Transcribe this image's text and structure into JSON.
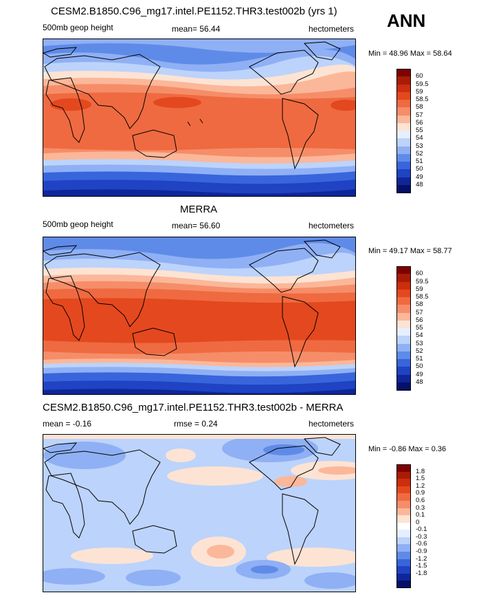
{
  "header": {
    "season": "ANN"
  },
  "panels": [
    {
      "id": "model",
      "title": "CESM2.B1850.C96_mg17.intel.PE1152.THR3.test002b (yrs 1)",
      "variable": "500mb geop height",
      "stat_text": "mean=  56.44",
      "units": "hectometers",
      "minmax": "Min =  48.96 Max =  58.64",
      "levels": [
        "60",
        "59.5",
        "59",
        "58.5",
        "58",
        "57",
        "56",
        "55",
        "54",
        "53",
        "52",
        "51",
        "50",
        "49",
        "48"
      ]
    },
    {
      "id": "obs",
      "title": "MERRA",
      "variable": "500mb geop height",
      "stat_text": "mean=  56.60",
      "units": "hectometers",
      "minmax": "Min =  49.17 Max =  58.77",
      "levels": [
        "60",
        "59.5",
        "59",
        "58.5",
        "58",
        "57",
        "56",
        "55",
        "54",
        "53",
        "52",
        "51",
        "50",
        "49",
        "48"
      ]
    },
    {
      "id": "diff",
      "title": "CESM2.B1850.C96_mg17.intel.PE1152.THR3.test002b - MERRA",
      "variable": "mean =  -0.16",
      "stat_text": "rmse =   0.24",
      "units": "hectometers",
      "minmax": "Min =  -0.86 Max =   0.36",
      "levels": [
        "1.8",
        "1.5",
        "1.2",
        "0.9",
        "0.6",
        "0.3",
        "0.1",
        "0",
        "-0.1",
        "-0.3",
        "-0.6",
        "-0.9",
        "-1.2",
        "-1.5",
        "-1.8"
      ]
    }
  ],
  "colors": {
    "height_scale": [
      "#7f0000",
      "#a81c05",
      "#cc2e0e",
      "#e4481e",
      "#ef6a40",
      "#f68d69",
      "#fbb799",
      "#fde3d3",
      "#e6efff",
      "#bcd3fb",
      "#8fb0f4",
      "#5f8be8",
      "#3865dc",
      "#1f43c2",
      "#0f2699",
      "#05106a"
    ],
    "diff_scale": [
      "#7f0000",
      "#a81c05",
      "#cc2e0e",
      "#e4481e",
      "#ef6a40",
      "#f68d69",
      "#fbb799",
      "#fde3d3",
      "#ffffff",
      "#e6efff",
      "#bcd3fb",
      "#8fb0f4",
      "#5f8be8",
      "#3865dc",
      "#1f43c2",
      "#0f2699",
      "#05106a"
    ]
  }
}
